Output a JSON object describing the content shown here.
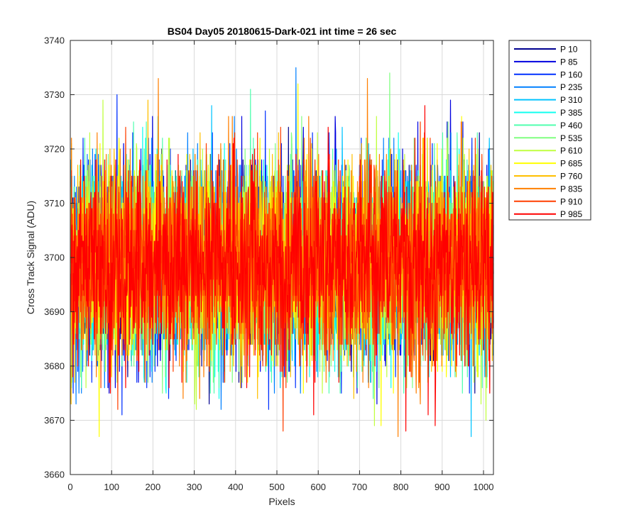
{
  "chart_data": {
    "type": "line",
    "title": "BS04 Day05 20180615-Dark-021 int time = 26 sec",
    "xlabel": "Pixels",
    "ylabel": "Cross Track Signal (ADU)",
    "xlim": [
      0,
      1024
    ],
    "ylim": [
      3660,
      3740
    ],
    "xticks": [
      0,
      100,
      200,
      300,
      400,
      500,
      600,
      700,
      800,
      900,
      1000
    ],
    "yticks": [
      3660,
      3670,
      3680,
      3690,
      3700,
      3710,
      3720,
      3730,
      3740
    ],
    "grid": true,
    "legend_position": "outside-top-right",
    "noise": {
      "mean": 3699,
      "sigma": 9,
      "n_points": 1024,
      "min": 3667,
      "max": 3740
    },
    "series": [
      {
        "name": "P 10",
        "color": "#00008f"
      },
      {
        "name": "P 85",
        "color": "#0000df"
      },
      {
        "name": "P 160",
        "color": "#0030ff"
      },
      {
        "name": "P 235",
        "color": "#0080ff"
      },
      {
        "name": "P 310",
        "color": "#00c4ff"
      },
      {
        "name": "P 385",
        "color": "#10ffef"
      },
      {
        "name": "P 460",
        "color": "#50ffaf"
      },
      {
        "name": "P 535",
        "color": "#80ff80"
      },
      {
        "name": "P 610",
        "color": "#c0ff40"
      },
      {
        "name": "P 685",
        "color": "#ffff00"
      },
      {
        "name": "P 760",
        "color": "#ffbf00"
      },
      {
        "name": "P 835",
        "color": "#ff7f00"
      },
      {
        "name": "P 910",
        "color": "#ff3f00"
      },
      {
        "name": "P 985",
        "color": "#ff0000"
      }
    ]
  }
}
